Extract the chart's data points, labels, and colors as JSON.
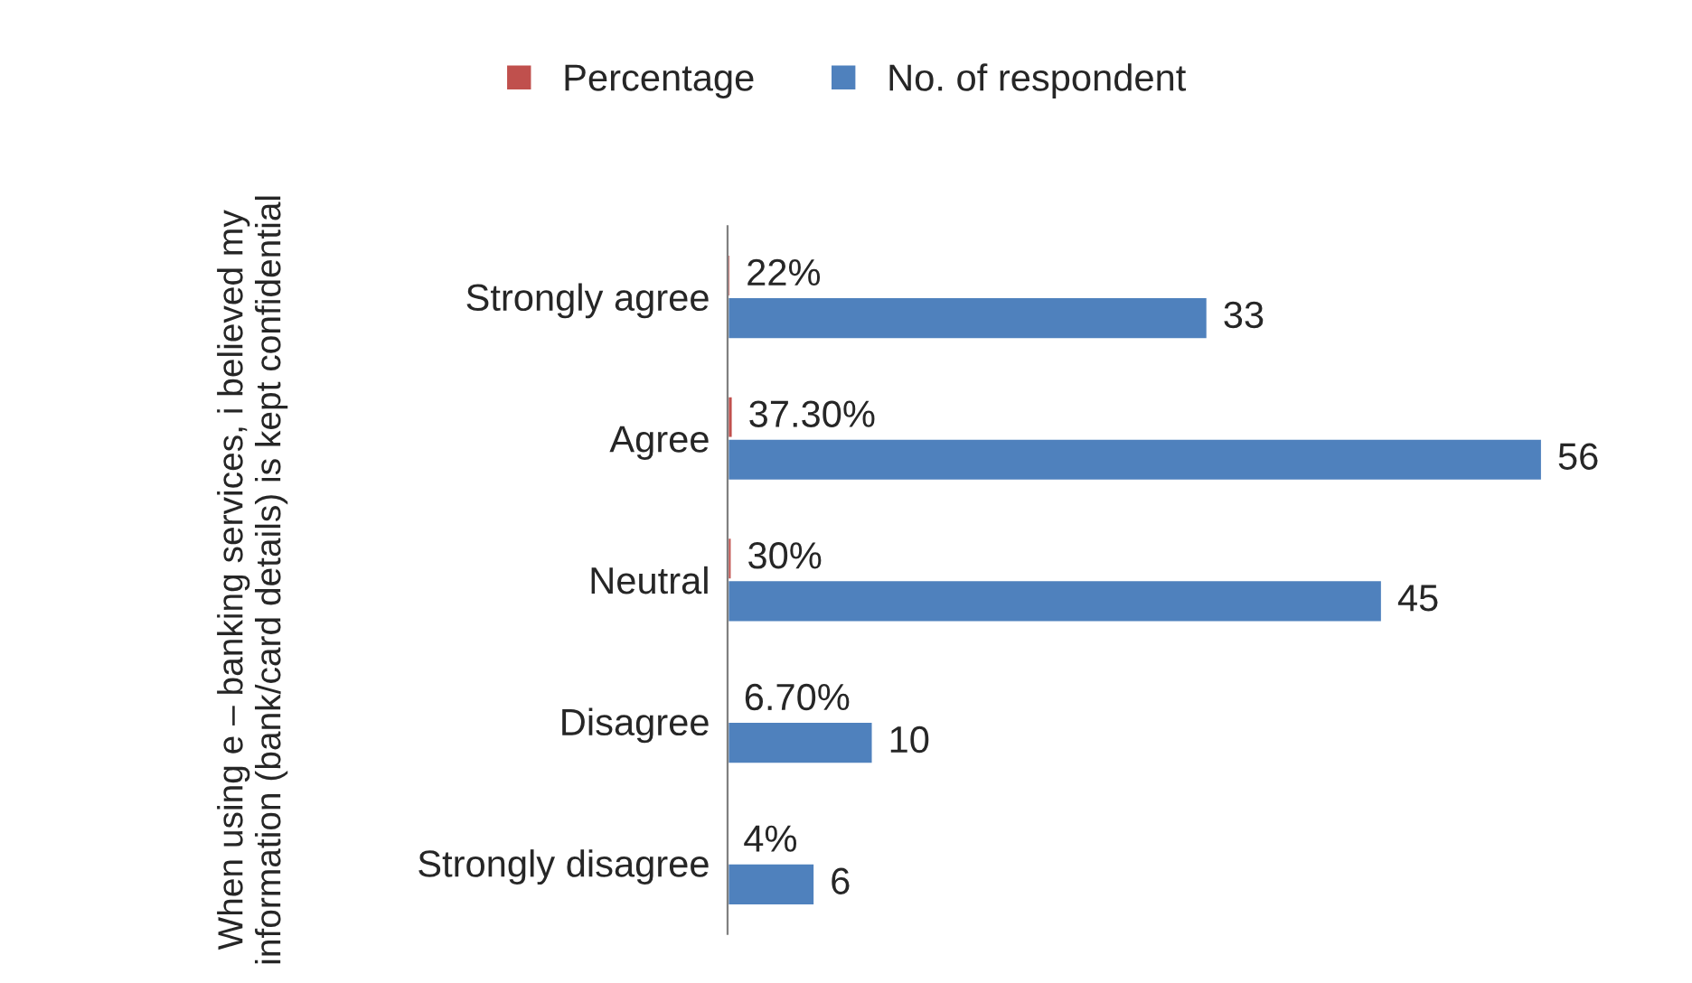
{
  "chart_data": {
    "type": "bar",
    "orientation": "horizontal",
    "ylabel": "When using e – banking services, i believed my information (bank/card details) is kept confidential",
    "categories": [
      "Strongly agree",
      "Agree",
      "Neutral",
      "Disagree",
      "Strongly disagree"
    ],
    "series": [
      {
        "name": "Percentage",
        "color": "#c0504d",
        "values": [
          0.22,
          0.373,
          0.3,
          0.067,
          0.04
        ],
        "value_labels": [
          "22%",
          "37.30%",
          "30%",
          "6.70%",
          "4%"
        ]
      },
      {
        "name": "No. of respondent",
        "color": "#4f81bd",
        "values": [
          33,
          56,
          45,
          10,
          6
        ],
        "value_labels": [
          "33",
          "56",
          "45",
          "10",
          "6"
        ]
      }
    ],
    "legend": "top",
    "grid": false,
    "tick_labels": "y"
  }
}
